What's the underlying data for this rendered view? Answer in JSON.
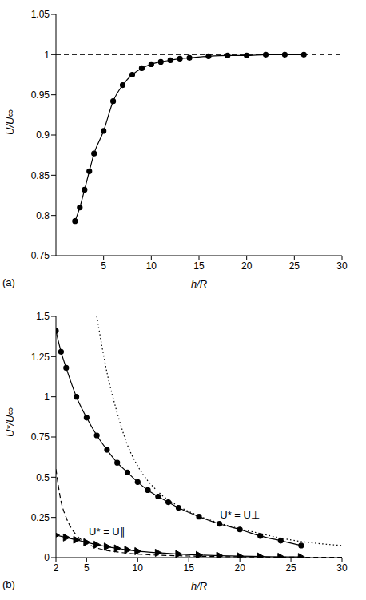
{
  "chart_data": [
    {
      "type": "line",
      "panel": "(a)",
      "x_label": "h/R",
      "y_label": "U/U∞",
      "xlim": [
        0,
        30
      ],
      "xticks": [
        5,
        10,
        15,
        20,
        25,
        30
      ],
      "ylim": [
        0.75,
        1.05
      ],
      "yticks": [
        0.75,
        0.8,
        0.85,
        0.9,
        0.95,
        1,
        1.05
      ],
      "reference_line": {
        "value": 1,
        "line_style": "dashed"
      },
      "series": [
        {
          "color": "#000000",
          "marker": "circle",
          "line_style": "solid",
          "x": [
            2,
            2.5,
            3,
            3.5,
            4,
            5,
            6,
            7,
            8,
            9,
            10,
            11,
            12,
            13,
            14,
            16,
            18,
            20,
            22,
            24,
            26
          ],
          "values": [
            0.793,
            0.81,
            0.832,
            0.855,
            0.877,
            0.905,
            0.942,
            0.962,
            0.975,
            0.983,
            0.988,
            0.991,
            0.993,
            0.995,
            0.996,
            0.998,
            0.999,
            0.999,
            1.0,
            1.0,
            1.0
          ]
        }
      ]
    },
    {
      "type": "line",
      "panel": "(b)",
      "x_label": "h/R",
      "y_label": "U*/U∞",
      "xlim": [
        2,
        30
      ],
      "xticks": [
        2,
        5,
        10,
        15,
        20,
        25,
        30
      ],
      "ylim": [
        0,
        1.5
      ],
      "yticks": [
        0,
        0.25,
        0.5,
        0.75,
        1,
        1.25,
        1.5
      ],
      "series": [
        {
          "name": "U* = U⊥",
          "color": "#000000",
          "marker": "circle",
          "line_style": "solid",
          "x": [
            2,
            2.5,
            3,
            4,
            5,
            6,
            7,
            8,
            9,
            10,
            11,
            12,
            13,
            14,
            16,
            18,
            20,
            22,
            24,
            26
          ],
          "values": [
            1.41,
            1.28,
            1.18,
            1.0,
            0.87,
            0.76,
            0.67,
            0.59,
            0.53,
            0.47,
            0.42,
            0.38,
            0.345,
            0.31,
            0.255,
            0.21,
            0.175,
            0.135,
            0.105,
            0.075
          ]
        },
        {
          "name": "U* = U∥",
          "color": "#000000",
          "marker": "triangle",
          "line_style": "solid",
          "x": [
            2,
            3,
            4,
            5,
            6,
            7,
            8,
            9,
            10,
            12,
            14,
            16,
            18,
            20,
            22,
            24,
            26
          ],
          "values": [
            0.14,
            0.125,
            0.11,
            0.095,
            0.08,
            0.068,
            0.057,
            0.048,
            0.04,
            0.03,
            0.022,
            0.016,
            0.012,
            0.009,
            0.007,
            0.005,
            0.004
          ]
        },
        {
          "color": "#000000",
          "marker": "none",
          "line_style": "dotted",
          "x": [
            6,
            7,
            8,
            9,
            10,
            12,
            14,
            16,
            18,
            20,
            22,
            25,
            30
          ],
          "values": [
            1.5,
            1.15,
            0.9,
            0.7,
            0.57,
            0.41,
            0.32,
            0.26,
            0.215,
            0.18,
            0.15,
            0.11,
            0.075
          ]
        },
        {
          "color": "#000000",
          "marker": "none",
          "line_style": "dashed",
          "x": [
            2,
            2.5,
            3,
            4,
            5,
            6,
            8,
            10,
            15,
            20,
            30
          ],
          "values": [
            0.55,
            0.35,
            0.25,
            0.14,
            0.09,
            0.06,
            0.035,
            0.022,
            0.01,
            0.005,
            0.002
          ]
        }
      ]
    }
  ]
}
